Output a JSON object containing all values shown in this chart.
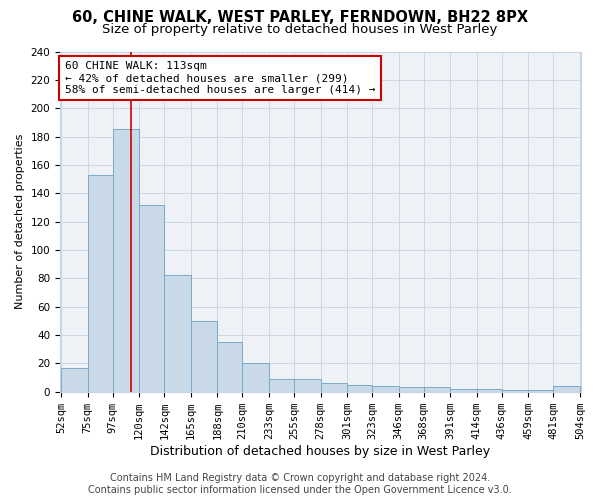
{
  "title": "60, CHINE WALK, WEST PARLEY, FERNDOWN, BH22 8PX",
  "subtitle": "Size of property relative to detached houses in West Parley",
  "xlabel": "Distribution of detached houses by size in West Parley",
  "ylabel": "Number of detached properties",
  "bar_labels": [
    "52sqm",
    "75sqm",
    "97sqm",
    "120sqm",
    "142sqm",
    "165sqm",
    "188sqm",
    "210sqm",
    "233sqm",
    "255sqm",
    "278sqm",
    "301sqm",
    "323sqm",
    "346sqm",
    "368sqm",
    "391sqm",
    "414sqm",
    "436sqm",
    "459sqm",
    "481sqm",
    "504sqm"
  ],
  "bar_heights": [
    17,
    153,
    185,
    132,
    82,
    50,
    35,
    20,
    9,
    9,
    6,
    5,
    4,
    3,
    3,
    2,
    2,
    1,
    1,
    4
  ],
  "bar_color": "#c9d9e8",
  "bar_edge_color": "#7aaac8",
  "vline_x": 113,
  "vline_color": "#cc0000",
  "annotation_line1": "60 CHINE WALK: 113sqm",
  "annotation_line2": "← 42% of detached houses are smaller (299)",
  "annotation_line3": "58% of semi-detached houses are larger (414) →",
  "annotation_box_color": "white",
  "annotation_box_edge": "#cc0000",
  "ylim": [
    0,
    240
  ],
  "yticks": [
    0,
    20,
    40,
    60,
    80,
    100,
    120,
    140,
    160,
    180,
    200,
    220,
    240
  ],
  "footer": "Contains HM Land Registry data © Crown copyright and database right 2024.\nContains public sector information licensed under the Open Government Licence v3.0.",
  "bg_color": "#eef2f7",
  "grid_color": "#c8d4e0",
  "title_fontsize": 10.5,
  "subtitle_fontsize": 9.5,
  "xlabel_fontsize": 9,
  "ylabel_fontsize": 8,
  "tick_fontsize": 7.5,
  "annotation_fontsize": 8,
  "footer_fontsize": 7
}
